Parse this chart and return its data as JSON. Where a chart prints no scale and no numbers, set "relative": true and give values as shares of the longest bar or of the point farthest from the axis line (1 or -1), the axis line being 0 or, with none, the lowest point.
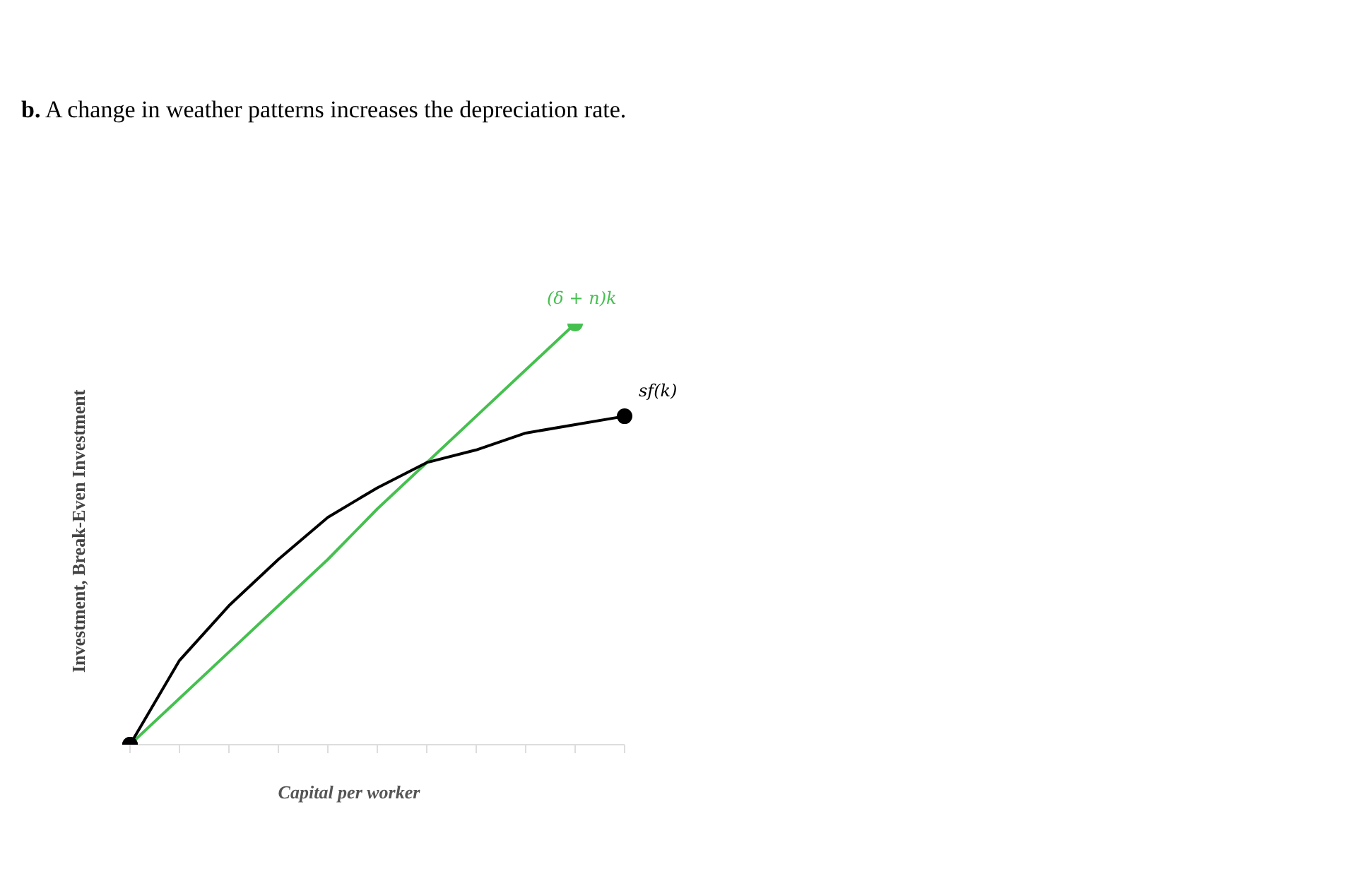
{
  "chart_data": {
    "type": "line",
    "title": "b. A change in weather patterns increases the depreciation rate.",
    "xlabel": "Capital per worker",
    "ylabel": "Investment, Break-Even Investment",
    "relative": true,
    "categories": [
      null,
      null,
      null,
      null,
      null,
      null,
      null,
      null,
      null,
      null,
      null
    ],
    "legend": false,
    "grid": false,
    "series": [
      {
        "name": "(δ + n)k",
        "color": "#45c04f",
        "values": [
          0,
          0.11,
          0.22,
          0.33,
          0.44,
          0.56,
          0.67,
          0.78,
          0.89,
          1.0,
          null
        ]
      },
      {
        "name": "sf(k)",
        "color": "#000000",
        "values": [
          0,
          0.2,
          0.33,
          0.44,
          0.54,
          0.61,
          0.67,
          0.7,
          0.74,
          0.76,
          0.78
        ]
      }
    ]
  }
}
